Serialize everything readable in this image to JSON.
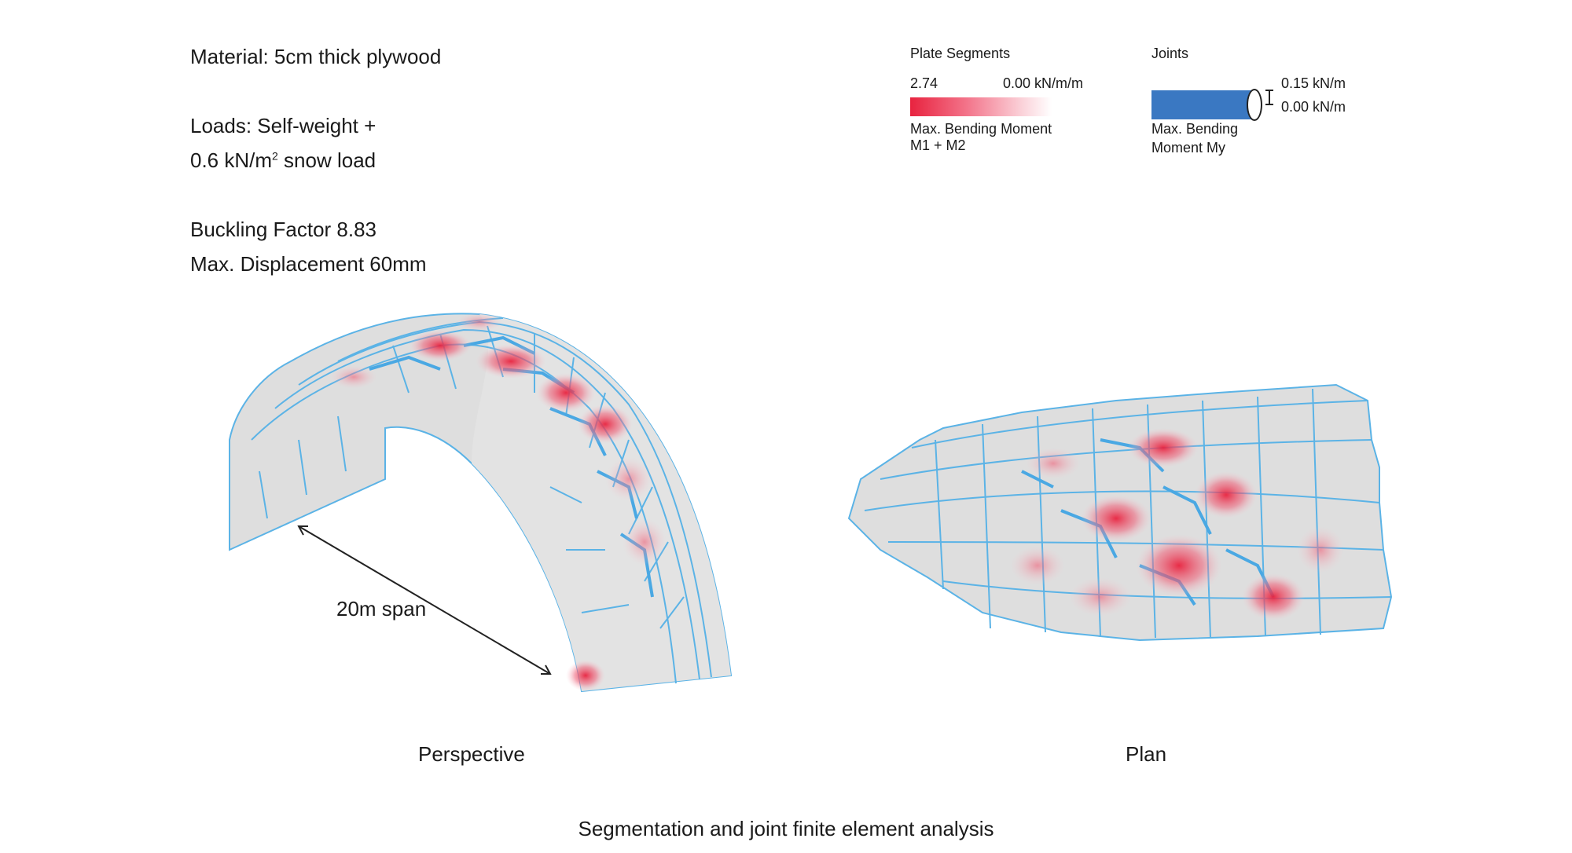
{
  "info": {
    "material": "Material: 5cm thick plywood",
    "loads_line1": "Loads: Self-weight +",
    "loads_line2_prefix": "0.6 kN/m",
    "loads_line2_sup": "2",
    "loads_line2_suffix": " snow load",
    "buckling": "Buckling Factor 8.83",
    "displacement": "Max. Displacement 60mm"
  },
  "legend_plates": {
    "title": "Plate Segments",
    "max_value": "2.74",
    "min_value": "0.00 kN/m/m",
    "desc_line1": "Max. Bending Moment",
    "desc_line2": "M1 + M2",
    "color_max": "#e8233f",
    "color_min": "#ffffff"
  },
  "legend_joints": {
    "title": "Joints",
    "max_value": "0.15 kN/m",
    "min_value": "0.00 kN/m",
    "desc_line1": "Max. Bending",
    "desc_line2": "Moment My",
    "color": "#3a78c2"
  },
  "views": {
    "perspective_label": "Perspective",
    "plan_label": "Plan",
    "span_label": "20m span"
  },
  "caption": "Segmentation and joint finite element analysis"
}
